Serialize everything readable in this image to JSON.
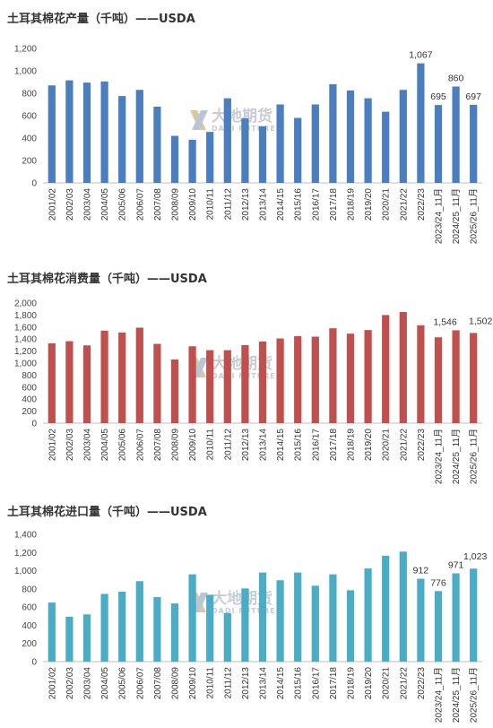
{
  "watermark": {
    "name": "大地期货",
    "sub": "DADI FUTURES"
  },
  "chart_data": [
    {
      "type": "bar",
      "title": "土耳其棉花产量（千吨）——USDA",
      "color": "#4a7ebf",
      "ylim": [
        0,
        1200
      ],
      "ytick_step": 200,
      "categories": [
        "2001/02",
        "2002/03",
        "2003/04",
        "2004/05",
        "2005/06",
        "2006/07",
        "2007/08",
        "2008/09",
        "2009/10",
        "2010/11",
        "2011/12",
        "2012/13",
        "2013/14",
        "2014/15",
        "2015/16",
        "2016/17",
        "2017/18",
        "2018/19",
        "2019/20",
        "2020/21",
        "2021/22",
        "2022/23",
        "2023/24_11月",
        "2024/25_11月",
        "2025/26_11月"
      ],
      "values": [
        870,
        915,
        895,
        905,
        775,
        830,
        680,
        420,
        385,
        455,
        755,
        575,
        505,
        700,
        580,
        700,
        880,
        825,
        755,
        635,
        830,
        1067,
        695,
        860,
        697
      ],
      "data_labels": [
        {
          "index": 21,
          "text": "1,067"
        },
        {
          "index": 22,
          "text": "695"
        },
        {
          "index": 23,
          "text": "860"
        },
        {
          "index": 24,
          "text": "697"
        }
      ],
      "grid": false
    },
    {
      "type": "bar",
      "title": "土耳其棉花消费量（千吨）——USDA",
      "color": "#c0504d",
      "ylim": [
        0,
        2000
      ],
      "ytick_step": 200,
      "categories": [
        "2001/02",
        "2002/03",
        "2003/04",
        "2004/05",
        "2005/06",
        "2006/07",
        "2007/08",
        "2008/09",
        "2009/10",
        "2010/11",
        "2011/12",
        "2012/13",
        "2013/14",
        "2014/15",
        "2015/16",
        "2016/17",
        "2017/18",
        "2018/19",
        "2019/20",
        "2020/21",
        "2021/22",
        "2022/23",
        "2023/24_11月",
        "2024/25_11月",
        "2025/26_11月"
      ],
      "values": [
        1330,
        1365,
        1295,
        1540,
        1510,
        1590,
        1320,
        1060,
        1280,
        1215,
        1215,
        1300,
        1360,
        1410,
        1450,
        1440,
        1580,
        1490,
        1550,
        1800,
        1850,
        1630,
        1430,
        1546,
        1502
      ],
      "data_labels": [
        {
          "index": 23,
          "text": "1,546"
        },
        {
          "index": 24,
          "text": "1,502"
        }
      ],
      "grid": false
    },
    {
      "type": "bar",
      "title": "土耳其棉花进口量（千吨）——USDA",
      "color": "#4bacc6",
      "ylim": [
        0,
        1400
      ],
      "ytick_step": 200,
      "categories": [
        "2001/02",
        "2002/03",
        "2003/04",
        "2004/05",
        "2005/06",
        "2006/07",
        "2007/08",
        "2008/09",
        "2009/10",
        "2010/11",
        "2011/12",
        "2012/13",
        "2013/14",
        "2014/15",
        "2015/16",
        "2016/17",
        "2017/18",
        "2018/19",
        "2019/20",
        "2020/21",
        "2021/22",
        "2022/23",
        "2023/24_11月",
        "2024/25_11月",
        "2025/26_11月"
      ],
      "values": [
        650,
        495,
        520,
        745,
        770,
        885,
        710,
        640,
        960,
        735,
        535,
        805,
        980,
        895,
        980,
        835,
        960,
        785,
        1025,
        1165,
        1210,
        912,
        776,
        971,
        1023
      ],
      "data_labels": [
        {
          "index": 21,
          "text": "912"
        },
        {
          "index": 22,
          "text": "776"
        },
        {
          "index": 23,
          "text": "971"
        },
        {
          "index": 24,
          "text": "1,023"
        }
      ],
      "grid": false
    }
  ]
}
